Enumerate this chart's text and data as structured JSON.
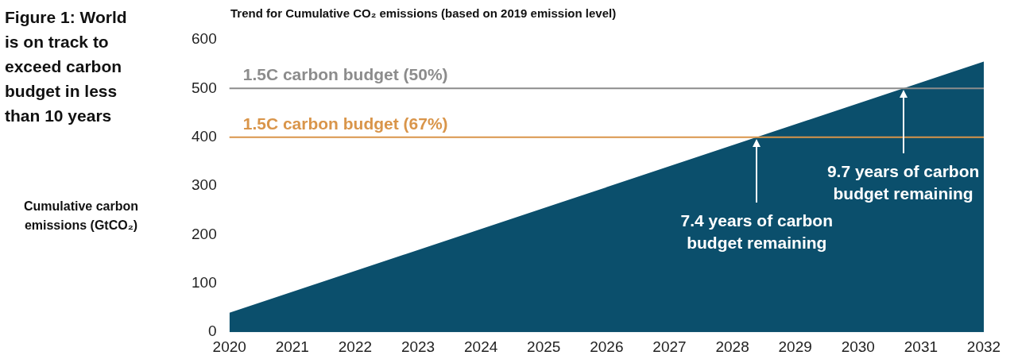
{
  "chart_data": {
    "type": "area",
    "title": "Figure 1: World is on track to exceed carbon budget in less than 10 years",
    "subtitle": "Trend for Cumulative CO₂ emissions (based on 2019 emission level)",
    "ylabel": "Cumulative carbon emissions (GtCO₂)",
    "x": [
      2020,
      2032
    ],
    "series": [
      {
        "color": "#0b4f6c",
        "values": [
          40,
          555
        ]
      }
    ],
    "xlim": [
      2020,
      2032
    ],
    "xticks": [
      2020,
      2021,
      2022,
      2023,
      2024,
      2025,
      2026,
      2027,
      2028,
      2029,
      2030,
      2031,
      2032
    ],
    "ylim": [
      0,
      600
    ],
    "yticks": [
      0,
      100,
      200,
      300,
      400,
      500,
      600
    ],
    "ref_lines": [
      {
        "axis": "y",
        "value": 400,
        "label": "1.5C carbon budget (67%)",
        "color": "#d9954a"
      },
      {
        "axis": "y",
        "value": 500,
        "label": "1.5C carbon budget (50%)",
        "color": "#8c8c8c"
      }
    ],
    "annotations": [
      "7.4 years of carbon budget remaining",
      "9.7 years of carbon budget remaining"
    ],
    "grid": false,
    "legend": false
  }
}
